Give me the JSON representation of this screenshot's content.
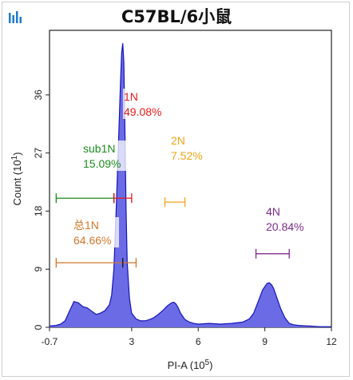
{
  "header": {
    "title": "C57BL/6小鼠",
    "icon": "bar-chart-icon",
    "icon_color": "#1e7ad2"
  },
  "chart_data": {
    "type": "area",
    "title": "C57BL/6小鼠",
    "xlabel": "PI-A (10^5)",
    "xlabel_base": "PI-A (10",
    "xlabel_exp": "5",
    "ylabel": "Count (10^1)",
    "ylabel_base": "Count (10",
    "ylabel_exp": "1",
    "xlim": [
      -0.7,
      12
    ],
    "ylim": [
      0,
      46
    ],
    "xticks": [
      "-0.7",
      "3",
      "6",
      "9",
      "12"
    ],
    "xtick_values": [
      -0.7,
      3,
      6,
      9,
      12
    ],
    "yticks": [
      "0",
      "9",
      "18",
      "27",
      "36"
    ],
    "ytick_values": [
      0,
      9,
      18,
      27,
      36
    ],
    "fill_color": "#6b6be6",
    "line_color": "#1515b8",
    "histogram": {
      "x": [
        -0.7,
        -0.4,
        -0.2,
        0,
        0.2,
        0.4,
        0.6,
        0.8,
        1.0,
        1.2,
        1.4,
        1.6,
        1.8,
        2.0,
        2.1,
        2.2,
        2.3,
        2.4,
        2.5,
        2.55,
        2.6,
        2.65,
        2.7,
        2.75,
        2.8,
        2.9,
        3.0,
        3.2,
        3.4,
        3.6,
        3.8,
        4.0,
        4.2,
        4.4,
        4.6,
        4.8,
        4.9,
        5.0,
        5.1,
        5.2,
        5.4,
        5.6,
        5.8,
        6.0,
        6.5,
        7.0,
        7.5,
        8.0,
        8.3,
        8.5,
        8.7,
        8.9,
        9.1,
        9.2,
        9.3,
        9.4,
        9.5,
        9.7,
        9.9,
        10.1,
        10.3,
        10.5,
        11.0,
        11.5,
        12.0
      ],
      "y": [
        0.2,
        0.3,
        0.5,
        1.0,
        2.5,
        4.0,
        3.8,
        3.2,
        3.0,
        2.5,
        2.0,
        2.2,
        2.6,
        3.5,
        5.0,
        9.0,
        18.0,
        28.0,
        38.0,
        42.5,
        44.0,
        41.0,
        30.0,
        18.0,
        10.0,
        4.5,
        2.2,
        1.3,
        1.0,
        1.0,
        1.2,
        1.5,
        2.0,
        2.6,
        3.3,
        3.8,
        3.9,
        3.6,
        3.0,
        2.2,
        1.2,
        0.8,
        0.6,
        0.5,
        0.6,
        0.5,
        0.6,
        0.8,
        1.3,
        2.2,
        4.0,
        5.8,
        6.8,
        6.9,
        6.6,
        6.0,
        5.0,
        3.0,
        1.5,
        0.6,
        0.4,
        0.3,
        0.2,
        0.1,
        0.1
      ]
    },
    "gates": [
      {
        "name": "sub1N",
        "pct": "15.09%",
        "color": "#1c8c1c",
        "x1": -0.4,
        "x2": 2.2,
        "y": 20.0,
        "mid": 2.2
      },
      {
        "name": "1N",
        "pct": "49.08%",
        "color": "#e11b1b",
        "x1": 2.2,
        "x2": 3.0,
        "y": 20.0
      },
      {
        "name": "2N",
        "pct": "7.52%",
        "color": "#f2a417",
        "x1": 4.5,
        "x2": 5.4,
        "y": 19.4
      },
      {
        "name": "总1N",
        "pct": "64.66%",
        "color": "#d2772b",
        "x1": -0.4,
        "x2": 3.2,
        "y": 10.0,
        "mid": 2.6
      },
      {
        "name": "4N",
        "pct": "20.84%",
        "color": "#7e2a8c",
        "x1": 8.6,
        "x2": 10.1,
        "y": 11.4
      }
    ]
  }
}
